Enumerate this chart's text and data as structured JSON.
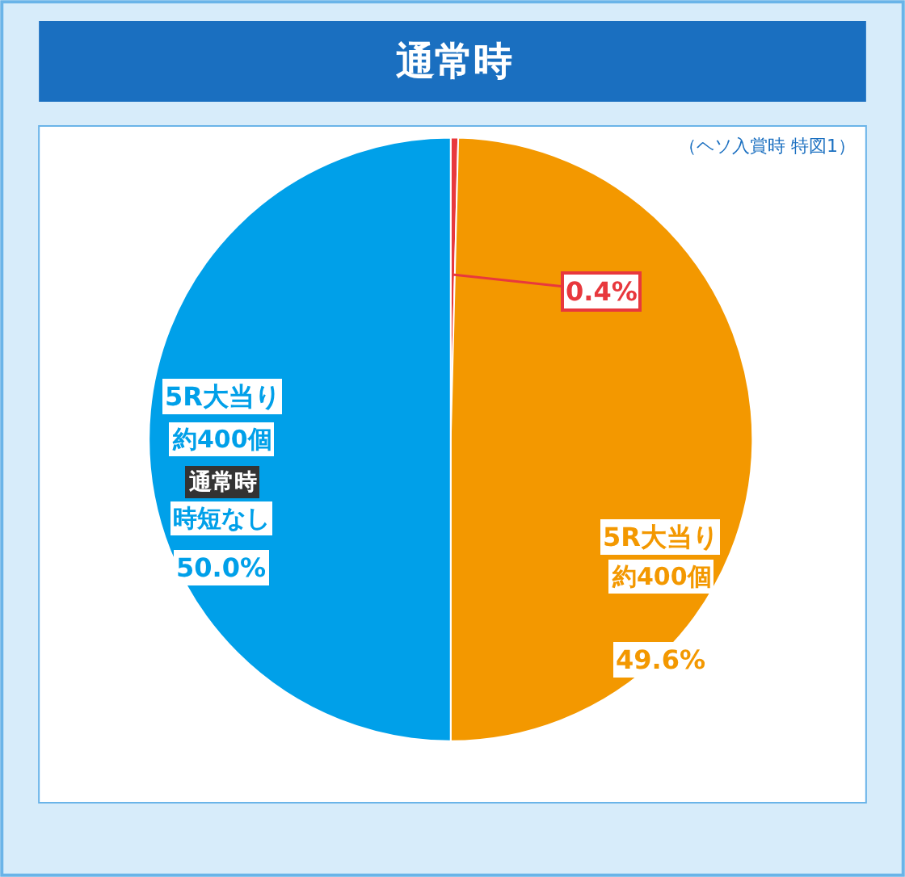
{
  "chart_data": {
    "type": "pie",
    "title": "通常時",
    "subtitle": "（ヘソ入賞時 特図1）",
    "categories": [
      null,
      "5R大当り",
      "5R大当り"
    ],
    "values": [
      0.4,
      49.6,
      50.0
    ],
    "colors": [
      "#e8383d",
      "#f39800",
      "#00a0e9"
    ],
    "value_labels": [
      "0.4%",
      "49.6%",
      "50.0%"
    ],
    "annotations": [
      "約400個",
      "通常時",
      "時短なし",
      "約400個"
    ],
    "legend": false
  }
}
